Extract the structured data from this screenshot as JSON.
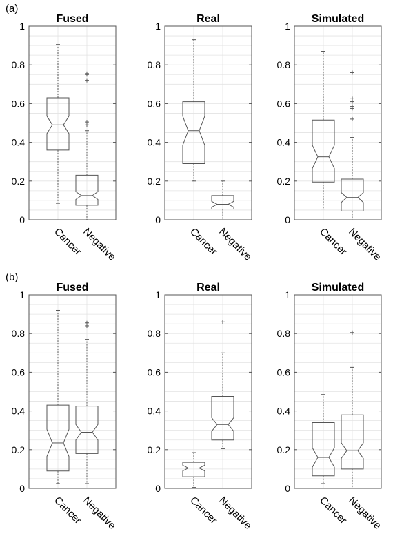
{
  "panels": [
    {
      "label": "(a)",
      "charts": [
        {
          "type": "box",
          "title": "Fused",
          "categories": [
            "Cancer",
            "Negative"
          ],
          "ylim": [
            0,
            1
          ],
          "yticks": [
            "0",
            "0.2",
            "0.4",
            "0.6",
            "0.8",
            "1"
          ],
          "grid": true,
          "boxes": [
            {
              "name": "Cancer",
              "q1": 0.36,
              "median": 0.49,
              "q3": 0.63,
              "notch_lo": 0.445,
              "notch_hi": 0.535,
              "whisker_lo": 0.085,
              "whisker_hi": 0.905,
              "outliers": []
            },
            {
              "name": "Negative",
              "q1": 0.075,
              "median": 0.125,
              "q3": 0.23,
              "notch_lo": 0.105,
              "notch_hi": 0.145,
              "whisker_lo": 0.0,
              "whisker_hi": 0.46,
              "outliers": [
                0.49,
                0.5,
                0.505,
                0.72,
                0.75,
                0.755
              ]
            }
          ]
        },
        {
          "type": "box",
          "title": "Real",
          "categories": [
            "Cancer",
            "Negative"
          ],
          "ylim": [
            0,
            1
          ],
          "yticks": [
            "0",
            "0.2",
            "0.4",
            "0.6",
            "0.8",
            "1"
          ],
          "grid": true,
          "boxes": [
            {
              "name": "Cancer",
              "q1": 0.29,
              "median": 0.46,
              "q3": 0.61,
              "notch_lo": 0.385,
              "notch_hi": 0.535,
              "whisker_lo": 0.2,
              "whisker_hi": 0.93,
              "outliers": []
            },
            {
              "name": "Negative",
              "q1": 0.055,
              "median": 0.08,
              "q3": 0.125,
              "notch_lo": 0.065,
              "notch_hi": 0.095,
              "whisker_lo": 0.0,
              "whisker_hi": 0.2,
              "outliers": []
            }
          ]
        },
        {
          "type": "box",
          "title": "Simulated",
          "categories": [
            "Cancer",
            "Negative"
          ],
          "ylim": [
            0,
            1
          ],
          "yticks": [
            "0",
            "0.2",
            "0.4",
            "0.6",
            "0.8",
            "1"
          ],
          "grid": true,
          "boxes": [
            {
              "name": "Cancer",
              "q1": 0.195,
              "median": 0.325,
              "q3": 0.515,
              "notch_lo": 0.265,
              "notch_hi": 0.385,
              "whisker_lo": 0.055,
              "whisker_hi": 0.87,
              "outliers": []
            },
            {
              "name": "Negative",
              "q1": 0.045,
              "median": 0.115,
              "q3": 0.21,
              "notch_lo": 0.09,
              "notch_hi": 0.14,
              "whisker_lo": 0.0,
              "whisker_hi": 0.425,
              "outliers": [
                0.52,
                0.575,
                0.585,
                0.61,
                0.625,
                0.76
              ]
            }
          ]
        }
      ]
    },
    {
      "label": "(b)",
      "charts": [
        {
          "type": "box",
          "title": "Fused",
          "categories": [
            "Cancer",
            "Negative"
          ],
          "ylim": [
            0,
            1
          ],
          "yticks": [
            "0",
            "0.2",
            "0.4",
            "0.6",
            "0.8",
            "1"
          ],
          "grid": true,
          "boxes": [
            {
              "name": "Cancer",
              "q1": 0.09,
              "median": 0.235,
              "q3": 0.43,
              "notch_lo": 0.165,
              "notch_hi": 0.305,
              "whisker_lo": 0.025,
              "whisker_hi": 0.92,
              "outliers": []
            },
            {
              "name": "Negative",
              "q1": 0.18,
              "median": 0.29,
              "q3": 0.425,
              "notch_lo": 0.25,
              "notch_hi": 0.33,
              "whisker_lo": 0.025,
              "whisker_hi": 0.77,
              "outliers": [
                0.84,
                0.855
              ]
            }
          ]
        },
        {
          "type": "box",
          "title": "Real",
          "categories": [
            "Cancer",
            "Negative"
          ],
          "ylim": [
            0,
            1
          ],
          "yticks": [
            "0",
            "0.2",
            "0.4",
            "0.6",
            "0.8",
            "1"
          ],
          "grid": true,
          "boxes": [
            {
              "name": "Cancer",
              "q1": 0.06,
              "median": 0.105,
              "q3": 0.135,
              "notch_lo": 0.09,
              "notch_hi": 0.12,
              "whisker_lo": 0.005,
              "whisker_hi": 0.185,
              "outliers": []
            },
            {
              "name": "Negative",
              "q1": 0.25,
              "median": 0.33,
              "q3": 0.475,
              "notch_lo": 0.295,
              "notch_hi": 0.365,
              "whisker_lo": 0.205,
              "whisker_hi": 0.7,
              "outliers": [
                0.86
              ]
            }
          ]
        },
        {
          "type": "box",
          "title": "Simulated",
          "categories": [
            "Cancer",
            "Negative"
          ],
          "ylim": [
            0,
            1
          ],
          "yticks": [
            "0",
            "0.2",
            "0.4",
            "0.6",
            "0.8",
            "1"
          ],
          "grid": true,
          "boxes": [
            {
              "name": "Cancer",
              "q1": 0.065,
              "median": 0.16,
              "q3": 0.34,
              "notch_lo": 0.11,
              "notch_hi": 0.21,
              "whisker_lo": 0.025,
              "whisker_hi": 0.485,
              "outliers": []
            },
            {
              "name": "Negative",
              "q1": 0.1,
              "median": 0.195,
              "q3": 0.38,
              "notch_lo": 0.155,
              "notch_hi": 0.235,
              "whisker_lo": 0.0,
              "whisker_hi": 0.625,
              "outliers": [
                0.805
              ]
            }
          ]
        }
      ]
    }
  ],
  "style": {
    "box_color": "#555555",
    "whisker_color": "#555555",
    "grid_color": "#e3e3e3",
    "axis_color": "#555555",
    "text_color": "#000000",
    "outlier_color": "#555555"
  }
}
